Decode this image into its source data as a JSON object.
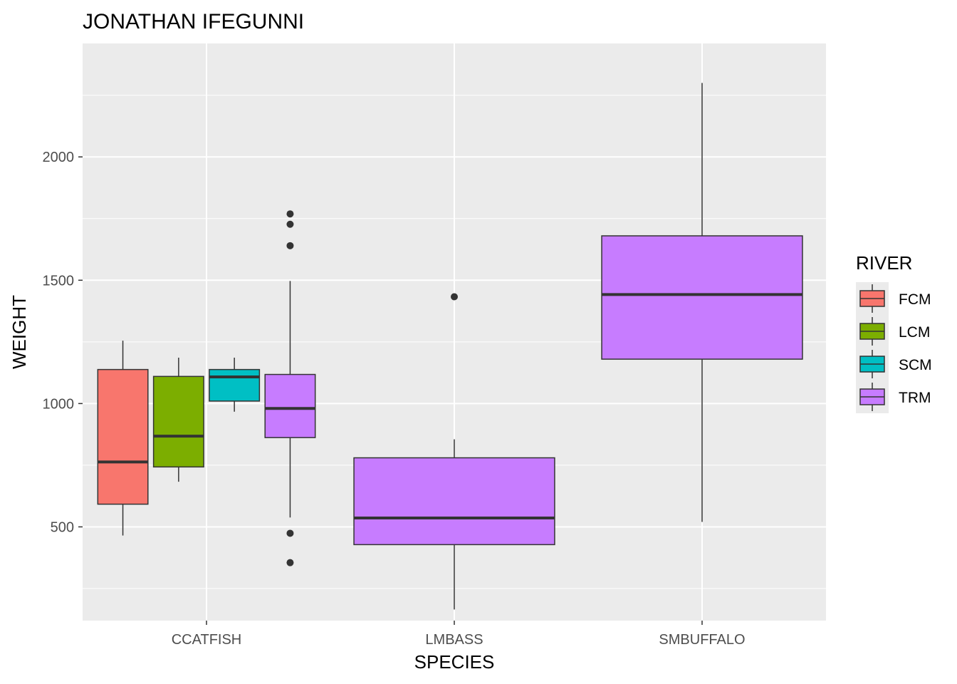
{
  "chart_data": {
    "type": "boxplot",
    "title": "JONATHAN IFEGUNNI",
    "xlabel": "SPECIES",
    "ylabel": "WEIGHT",
    "categories": [
      "CCATFISH",
      "LMBASS",
      "SMBUFFALO"
    ],
    "ylim": [
      120,
      2460
    ],
    "yticks": [
      500,
      1000,
      1500,
      2000
    ],
    "grid": true,
    "legend": {
      "title": "RIVER",
      "position": "right",
      "entries": [
        {
          "name": "FCM",
          "color": "#F8766D"
        },
        {
          "name": "LCM",
          "color": "#7CAE00"
        },
        {
          "name": "SCM",
          "color": "#00BFC4"
        },
        {
          "name": "TRM",
          "color": "#C77CFF"
        }
      ]
    },
    "boxes": [
      {
        "category": "CCATFISH",
        "group": "FCM",
        "slot": 0,
        "slots": 4,
        "min": 465,
        "q1": 592,
        "median": 763,
        "q3": 1138,
        "max": 1255,
        "outliers": []
      },
      {
        "category": "CCATFISH",
        "group": "LCM",
        "slot": 1,
        "slots": 4,
        "min": 683,
        "q1": 743,
        "median": 868,
        "q3": 1110,
        "max": 1186,
        "outliers": []
      },
      {
        "category": "CCATFISH",
        "group": "SCM",
        "slot": 2,
        "slots": 4,
        "min": 967,
        "q1": 1010,
        "median": 1108,
        "q3": 1138,
        "max": 1186,
        "outliers": []
      },
      {
        "category": "CCATFISH",
        "group": "TRM",
        "slot": 3,
        "slots": 4,
        "min": 538,
        "q1": 862,
        "median": 980,
        "q3": 1118,
        "max": 1497,
        "outliers": [
          355,
          474,
          1640,
          1727,
          1769
        ]
      },
      {
        "category": "LMBASS",
        "group": "TRM",
        "slot": 0,
        "slots": 1,
        "min": 165,
        "q1": 428,
        "median": 536,
        "q3": 780,
        "max": 855,
        "outliers": [
          1433
        ]
      },
      {
        "category": "SMBUFFALO",
        "group": "TRM",
        "slot": 0,
        "slots": 1,
        "min": 520,
        "q1": 1180,
        "median": 1442,
        "q3": 1680,
        "max": 2300,
        "outliers": []
      }
    ]
  }
}
